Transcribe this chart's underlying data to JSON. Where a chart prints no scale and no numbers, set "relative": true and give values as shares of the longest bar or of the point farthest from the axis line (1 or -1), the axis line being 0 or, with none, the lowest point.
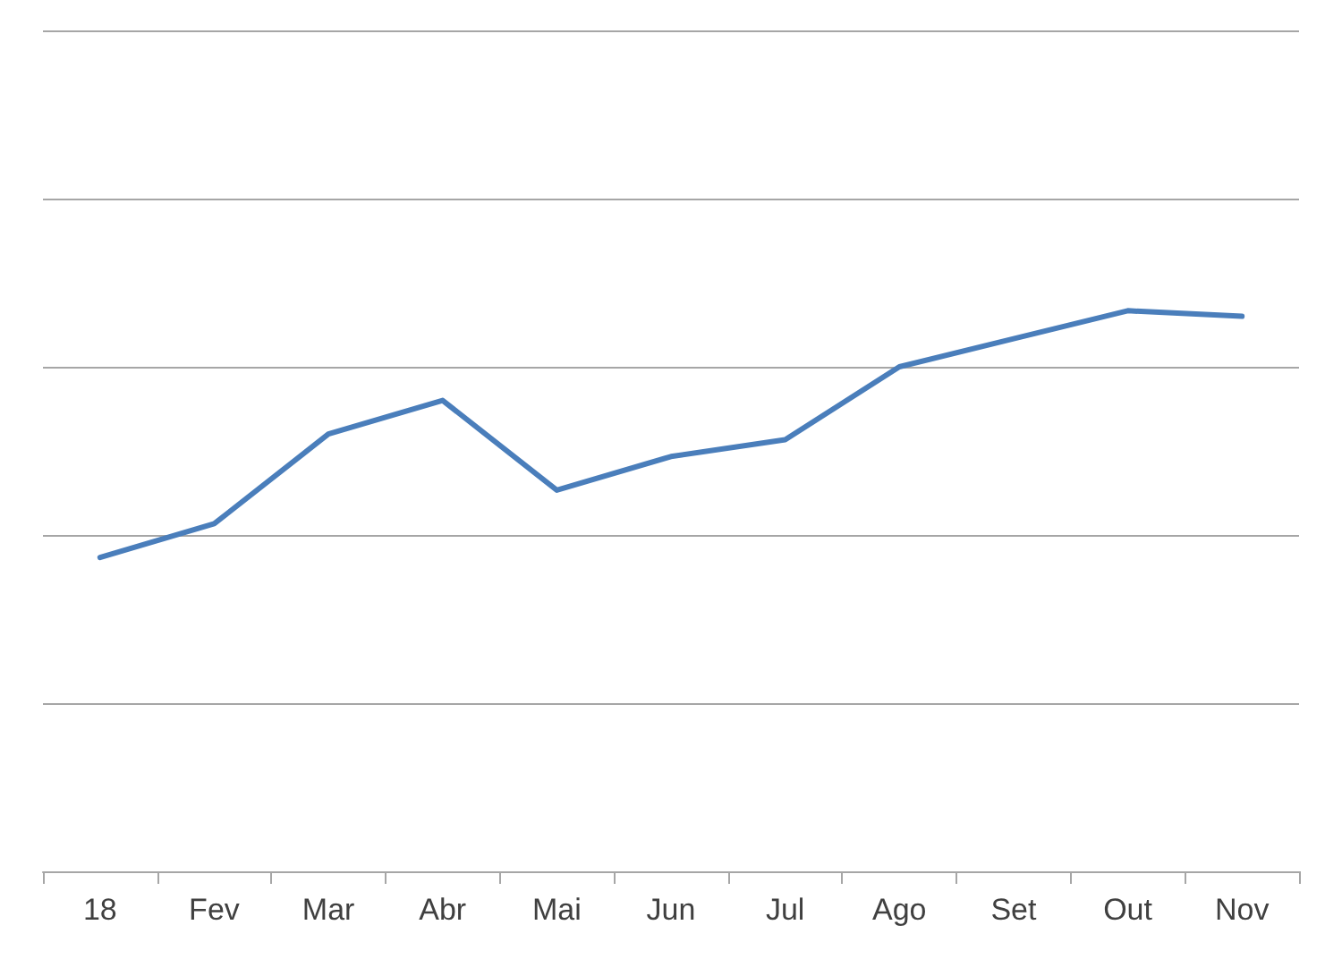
{
  "chart_data": {
    "type": "line",
    "relative": true,
    "categories": [
      "18",
      "Fev",
      "Mar",
      "Abr",
      "Mai",
      "Jun",
      "Jul",
      "Ago",
      "Set",
      "Out",
      "Nov"
    ],
    "values": [
      0.56,
      0.62,
      0.78,
      0.84,
      0.68,
      0.74,
      0.77,
      0.9,
      0.95,
      1,
      0.99
    ],
    "color": "#4a7ebb",
    "grid": "y",
    "marker": "none",
    "line_style": "solid"
  }
}
